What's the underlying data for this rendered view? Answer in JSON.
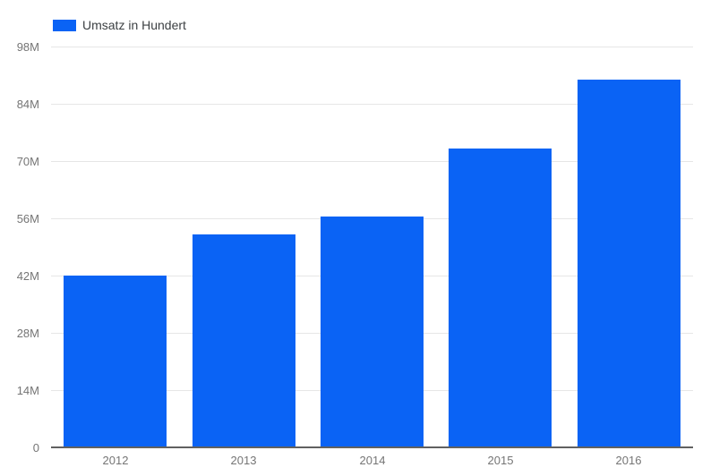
{
  "chart_data": {
    "type": "bar",
    "title": "",
    "legend": {
      "label": "Umsatz in Hundert",
      "position": "top-left"
    },
    "categories": [
      "2012",
      "2013",
      "2014",
      "2015",
      "2016"
    ],
    "series": [
      {
        "name": "Umsatz in Hundert",
        "color": "#0a63f5",
        "values": [
          42,
          52,
          56.5,
          73,
          90
        ]
      }
    ],
    "xlabel": "",
    "ylabel": "",
    "ylim": [
      0,
      98
    ],
    "y_ticks": [
      {
        "value": 0,
        "label": "0"
      },
      {
        "value": 14,
        "label": "14M"
      },
      {
        "value": 28,
        "label": "28M"
      },
      {
        "value": 42,
        "label": "42M"
      },
      {
        "value": 56,
        "label": "56M"
      },
      {
        "value": 70,
        "label": "70M"
      },
      {
        "value": 84,
        "label": "84M"
      },
      {
        "value": 98,
        "label": "98M"
      }
    ],
    "grid": true,
    "colors": {
      "background": "#ffffff",
      "gridline": "#e6e6e6",
      "axis_line": "#616161",
      "tick_text": "#757575",
      "legend_text": "#3c4043"
    }
  }
}
